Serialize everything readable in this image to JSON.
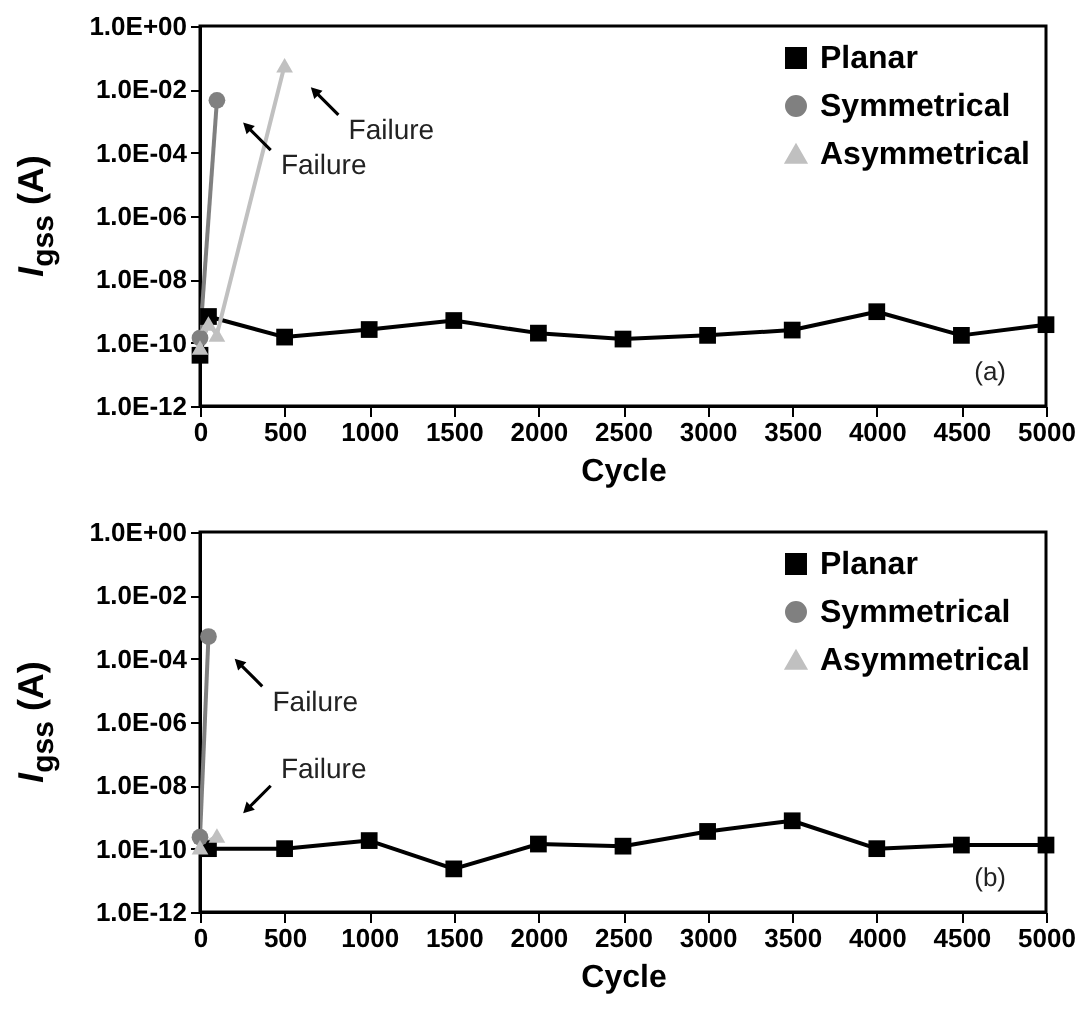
{
  "chart_data": [
    {
      "type": "line",
      "xlabel": "Cycle",
      "ylabel": "I$_{gss}$ (A)",
      "log": true,
      "xlim": [
        0,
        5000
      ],
      "xticks": [
        0,
        500,
        1000,
        1500,
        2000,
        2500,
        3000,
        3500,
        4000,
        4500,
        5000
      ],
      "ylim": [
        1e-12,
        1
      ],
      "yticks": [
        {
          "value": 1e-12,
          "label": "1.0E-12"
        },
        {
          "value": 1e-10,
          "label": "1.0E-10"
        },
        {
          "value": 1e-08,
          "label": "1.0E-08"
        },
        {
          "value": 1e-06,
          "label": "1.0E-06"
        },
        {
          "value": 0.0001,
          "label": "1.0E-04"
        },
        {
          "value": 0.01,
          "label": "1.0E-02"
        },
        {
          "value": 1,
          "label": "1.0E+00"
        }
      ],
      "grid": false,
      "legend": "top right",
      "line_style": "solid",
      "series": [
        {
          "name": "Planar",
          "color": "#000000",
          "marker": "square",
          "x": [
            0,
            50,
            500,
            1000,
            1500,
            2000,
            2500,
            3000,
            3500,
            4000,
            4500,
            5000
          ],
          "values": [
            4e-11,
            6.7e-10,
            1.5e-10,
            2.6e-10,
            5e-10,
            2e-10,
            1.3e-10,
            1.7e-10,
            2.5e-10,
            9.5e-10,
            1.7e-10,
            3.7e-10
          ]
        },
        {
          "name": "Symmetrical",
          "color": "#808080",
          "marker": "circle",
          "x": [
            0,
            100
          ],
          "values": [
            1.4e-10,
            0.0045
          ]
        },
        {
          "name": "Asymmetrical",
          "color": "#c0c0c0",
          "marker": "triangle",
          "x": [
            0,
            50,
            100,
            500
          ],
          "values": [
            7e-11,
            4e-10,
            1.8e-10,
            0.058
          ]
        }
      ],
      "annotations": [
        {
          "text": "Failure",
          "x": 100,
          "y": 0.0045
        },
        {
          "text": "Failure",
          "x": 500,
          "y": 0.058
        },
        "(a)"
      ]
    },
    {
      "type": "line",
      "xlabel": "Cycle",
      "ylabel": "I$_{gss}$ (A)",
      "log": true,
      "xlim": [
        0,
        5000
      ],
      "xticks": [
        0,
        500,
        1000,
        1500,
        2000,
        2500,
        3000,
        3500,
        4000,
        4500,
        5000
      ],
      "ylim": [
        1e-12,
        1
      ],
      "yticks": [
        {
          "value": 1e-12,
          "label": "1.0E-12"
        },
        {
          "value": 1e-10,
          "label": "1.0E-10"
        },
        {
          "value": 1e-08,
          "label": "1.0E-08"
        },
        {
          "value": 1e-06,
          "label": "1.0E-06"
        },
        {
          "value": 0.0001,
          "label": "1.0E-04"
        },
        {
          "value": 0.01,
          "label": "1.0E-02"
        },
        {
          "value": 1,
          "label": "1.0E+00"
        }
      ],
      "grid": false,
      "legend": "top right",
      "line_style": "solid",
      "series": [
        {
          "name": "Planar",
          "color": "#000000",
          "marker": "square",
          "x": [
            50,
            500,
            1000,
            1500,
            2000,
            2500,
            3000,
            3500,
            4000,
            4500,
            5000
          ],
          "values": [
            1e-10,
            1e-10,
            1.8e-10,
            2.3e-11,
            1.4e-10,
            1.2e-10,
            3.5e-10,
            7.6e-10,
            1e-10,
            1.3e-10,
            1.3e-10
          ]
        },
        {
          "name": "Symmetrical",
          "color": "#808080",
          "marker": "circle",
          "x": [
            0,
            50
          ],
          "values": [
            2.3e-10,
            0.0005
          ]
        },
        {
          "name": "Asymmetrical",
          "color": "#c0c0c0",
          "marker": "triangle",
          "x": [
            0,
            100
          ],
          "values": [
            1.1e-10,
            2.6e-10
          ]
        }
      ],
      "annotations": [
        {
          "text": "Failure",
          "x": 50,
          "y": 0.0005
        },
        {
          "text": "Failure",
          "x": 100,
          "y": 2.6e-10
        },
        "(b)"
      ]
    }
  ]
}
